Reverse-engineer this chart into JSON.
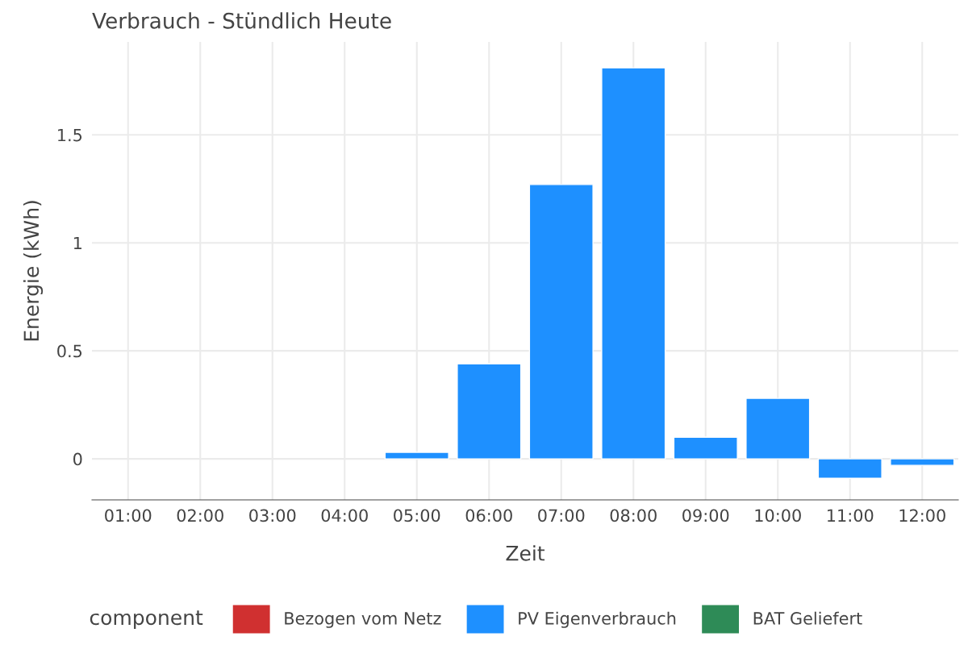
{
  "chart_data": {
    "type": "bar",
    "title": "Verbrauch - Stündlich Heute",
    "xlabel": "Zeit",
    "ylabel": "Energie (kWh)",
    "legend_title": "component",
    "categories": [
      "01:00",
      "02:00",
      "03:00",
      "04:00",
      "05:00",
      "06:00",
      "07:00",
      "08:00",
      "09:00",
      "10:00",
      "11:00",
      "12:00"
    ],
    "series": [
      {
        "name": "Bezogen vom Netz",
        "color": "#d03030",
        "values": [
          null,
          null,
          null,
          null,
          null,
          null,
          null,
          null,
          null,
          null,
          null,
          null
        ]
      },
      {
        "name": "PV Eigenverbrauch",
        "color": "#1e90ff",
        "values": [
          null,
          null,
          null,
          null,
          0.03,
          0.44,
          1.27,
          1.81,
          0.1,
          0.28,
          -0.09,
          -0.03
        ]
      },
      {
        "name": "BAT Geliefert",
        "color": "#2e8b57",
        "values": [
          null,
          null,
          null,
          null,
          null,
          null,
          null,
          null,
          null,
          null,
          null,
          null
        ]
      }
    ],
    "ylim": [
      -0.19,
      1.93
    ],
    "yticks": [
      0,
      0.5,
      1,
      1.5
    ],
    "grid": true,
    "legend": "bottom"
  }
}
